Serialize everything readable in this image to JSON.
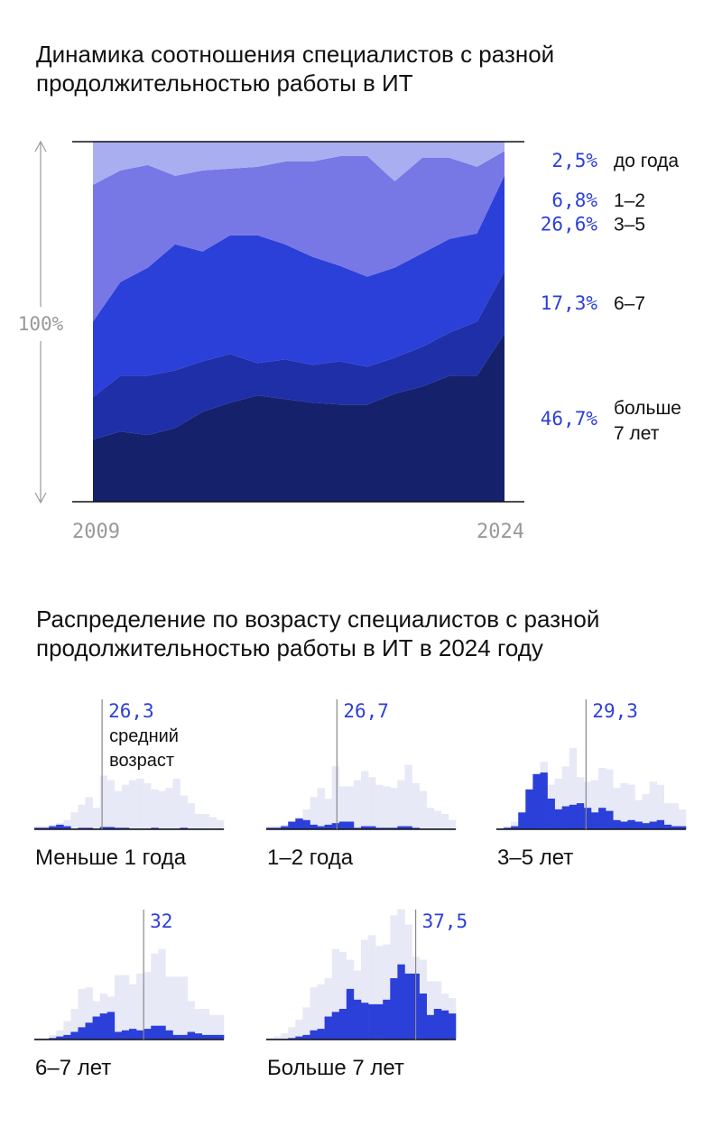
{
  "colors": {
    "background": "#ffffff",
    "accent": "#2b3fd9",
    "gray": "#999999",
    "bands": [
      "#15216a",
      "#1f2fa8",
      "#2b3fd9",
      "#7777e6",
      "#a8aef0"
    ],
    "hist_background": "#e8e9f6",
    "hist_foreground": "#2b3fd9"
  },
  "title_area": "Динамика соотношения специалистов с разной продолжительностью работы в ИТ",
  "title_hist": "Распределение по возрасту специалистов с разной продолжительностью работы в ИТ в 2024 году",
  "chart_data": [
    {
      "type": "area",
      "stacked": true,
      "normalized": true,
      "x": [
        2009,
        2010,
        2011,
        2012,
        2013,
        2014,
        2015,
        2016,
        2017,
        2018,
        2019,
        2020,
        2021,
        2022,
        2023,
        2024
      ],
      "x_ticks": [
        "2009",
        "2024"
      ],
      "y_label": "100%",
      "series": [
        {
          "name": "больше 7 лет",
          "end_label": "46,7%",
          "values": [
            17.3,
            19.5,
            18.5,
            20.5,
            25.0,
            27.5,
            29.5,
            28.5,
            27.5,
            27.0,
            27.0,
            30.0,
            32.0,
            35.0,
            35.0,
            46.7
          ]
        },
        {
          "name": "6–7",
          "end_label": "17,3%",
          "values": [
            11.7,
            15.5,
            16.5,
            16.0,
            14.0,
            13.5,
            9.0,
            11.0,
            10.5,
            12.0,
            10.5,
            10.0,
            11.0,
            12.0,
            15.0,
            17.3
          ]
        },
        {
          "name": "3–5",
          "end_label": "26,6%",
          "values": [
            21.0,
            26.0,
            30.0,
            35.0,
            30.5,
            33.0,
            35.5,
            32.0,
            30.0,
            26.5,
            25.0,
            25.0,
            26.0,
            26.0,
            24.5,
            26.6
          ]
        },
        {
          "name": "1–2",
          "end_label": "6,8%",
          "values": [
            38.0,
            31.0,
            28.5,
            19.0,
            22.5,
            18.5,
            19.0,
            23.0,
            26.5,
            30.5,
            33.5,
            24.0,
            26.5,
            22.5,
            18.5,
            6.8
          ]
        },
        {
          "name": "до года",
          "end_label": "2,5%",
          "values": [
            12.0,
            8.0,
            6.5,
            9.5,
            8.0,
            7.5,
            7.0,
            5.5,
            5.5,
            4.0,
            4.0,
            11.0,
            4.5,
            4.5,
            7.0,
            2.5
          ]
        }
      ]
    },
    {
      "type": "bar",
      "subtitle": "Меньше 1 года",
      "mean": "26,3",
      "mean_note": [
        "средний",
        "возраст"
      ],
      "background": [
        2,
        2,
        3,
        4,
        6,
        11,
        16,
        21,
        14,
        35,
        32,
        25,
        29,
        32,
        33,
        30,
        26,
        25,
        27,
        33,
        22,
        17,
        10,
        10,
        8,
        6
      ],
      "values": [
        1,
        1,
        2,
        3,
        2,
        0.5,
        1,
        1,
        0.5,
        1.5,
        1.5,
        1,
        1,
        0.5,
        0.5,
        0.5,
        1,
        0.5,
        0.5,
        0.5,
        1,
        0.5,
        0.5,
        0.5,
        0.5,
        0.5
      ]
    },
    {
      "type": "bar",
      "subtitle": "1–2 года",
      "mean": "26,7",
      "background": [
        2,
        2,
        3,
        5,
        8,
        13,
        21,
        27,
        20,
        41,
        28,
        28,
        32,
        38,
        34,
        29,
        28,
        27,
        32,
        42,
        30,
        25,
        14,
        12,
        10,
        6
      ],
      "values": [
        1,
        1,
        2,
        5,
        7,
        6,
        3,
        2,
        3,
        4,
        5,
        5,
        1,
        2,
        2,
        1,
        1,
        1,
        2,
        2,
        1,
        0.5,
        0.5,
        0.5,
        0.5,
        0.5
      ]
    },
    {
      "type": "bar",
      "subtitle": "3–5 лет",
      "mean": "29,3",
      "background": [
        1,
        2,
        5,
        9,
        22,
        30,
        44,
        29,
        33,
        41,
        53,
        34,
        31,
        32,
        40,
        39,
        27,
        30,
        29,
        19,
        23,
        31,
        29,
        17,
        17,
        13
      ],
      "values": [
        0.5,
        1,
        2,
        11,
        26,
        36,
        37,
        20,
        13,
        15,
        16,
        17,
        14,
        11,
        14,
        12,
        6,
        5,
        6,
        5,
        4,
        5,
        6,
        3,
        2,
        2
      ]
    },
    {
      "type": "bar",
      "subtitle": "6–7 лет",
      "mean": "32",
      "background": [
        1,
        1,
        3,
        6,
        12,
        20,
        33,
        34,
        25,
        30,
        28,
        42,
        42,
        36,
        43,
        44,
        56,
        59,
        41,
        41,
        41,
        25,
        20,
        20,
        16,
        16
      ],
      "values": [
        0.5,
        0.5,
        1,
        2,
        3,
        5,
        8,
        11,
        15,
        17,
        18,
        5,
        6,
        7,
        6,
        7,
        9,
        9,
        6,
        3,
        3,
        5,
        4,
        3,
        3,
        3
      ]
    },
    {
      "type": "bar",
      "subtitle": "Больше 7 лет",
      "mean": "37,5",
      "background": [
        1,
        2,
        4,
        8,
        13,
        21,
        34,
        36,
        40,
        59,
        57,
        52,
        45,
        65,
        68,
        61,
        62,
        81,
        85,
        75,
        54,
        52,
        38,
        38,
        30,
        27
      ],
      "values": [
        0.5,
        0.5,
        0.5,
        1,
        2,
        3,
        6,
        7,
        15,
        18,
        20,
        33,
        26,
        24,
        23,
        23,
        26,
        40,
        49,
        43,
        43,
        30,
        16,
        20,
        19,
        17
      ]
    }
  ]
}
